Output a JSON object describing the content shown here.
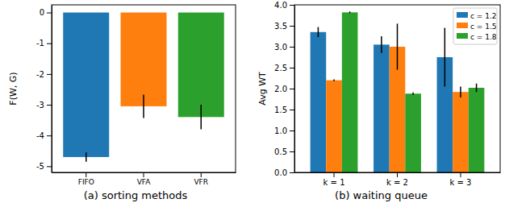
{
  "chart_data": [
    {
      "type": "bar",
      "title": "(a) sorting methods",
      "ylabel": "F(W, G)",
      "categories": [
        "FIFO",
        "VFA",
        "VFR"
      ],
      "values": [
        -4.7,
        -3.05,
        -3.4
      ],
      "errors": [
        0.15,
        0.38,
        0.4
      ],
      "colors": [
        "#1f77b4",
        "#ff7f0e",
        "#2ca02c"
      ],
      "ylim": [
        -5.2,
        0.25
      ],
      "yticks": [
        0,
        -1,
        -2,
        -3,
        -4,
        -5
      ]
    },
    {
      "type": "bar",
      "title": "(b) waiting queue",
      "ylabel": "Avg WT",
      "categories": [
        "k = 1",
        "k = 2",
        "k = 3"
      ],
      "series": [
        {
          "name": "c = 1.2",
          "color": "#1f77b4",
          "values": [
            3.35,
            3.05,
            2.75
          ],
          "errors": [
            0.12,
            0.2,
            0.7
          ]
        },
        {
          "name": "c = 1.5",
          "color": "#ff7f0e",
          "values": [
            2.2,
            3.0,
            1.92
          ],
          "errors": [
            0.02,
            0.55,
            0.13
          ]
        },
        {
          "name": "c = 1.8",
          "color": "#2ca02c",
          "values": [
            3.82,
            1.88,
            2.02
          ],
          "errors": [
            0.02,
            0.03,
            0.1
          ]
        }
      ],
      "ylim": [
        0,
        4.0
      ],
      "yticks": [
        {
          "value": 0,
          "label": "0.0"
        },
        0.5,
        {
          "value": 1,
          "label": "1.0"
        },
        1.5,
        {
          "value": 2,
          "label": "2.0"
        },
        2.5,
        {
          "value": 3,
          "label": "3.0"
        },
        3.5,
        {
          "value": 4,
          "label": "4.0"
        }
      ],
      "legend": "upper right"
    }
  ]
}
